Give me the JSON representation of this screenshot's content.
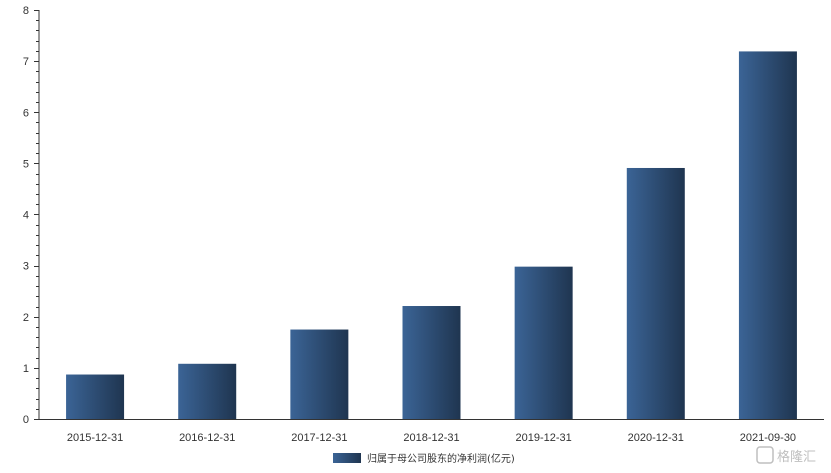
{
  "chart_data": {
    "type": "bar",
    "categories": [
      "2015-12-31",
      "2016-12-31",
      "2017-12-31",
      "2018-12-31",
      "2019-12-31",
      "2020-12-31",
      "2021-09-30"
    ],
    "series": [
      {
        "name": "归属于母公司股东的净利润(亿元)",
        "values": [
          0.87,
          1.08,
          1.75,
          2.21,
          2.98,
          4.91,
          7.19
        ]
      }
    ],
    "yticks": [
      "0",
      "1",
      "2",
      "3",
      "4",
      "5",
      "6",
      "7",
      "8"
    ],
    "ylim": [
      0,
      8
    ],
    "grid": false,
    "legend": "bottom-center",
    "colors": {
      "bar_light": "#3b6496",
      "bar_dark": "#1f3550",
      "axis": "#333333"
    }
  },
  "watermark": {
    "text": "格隆汇"
  }
}
